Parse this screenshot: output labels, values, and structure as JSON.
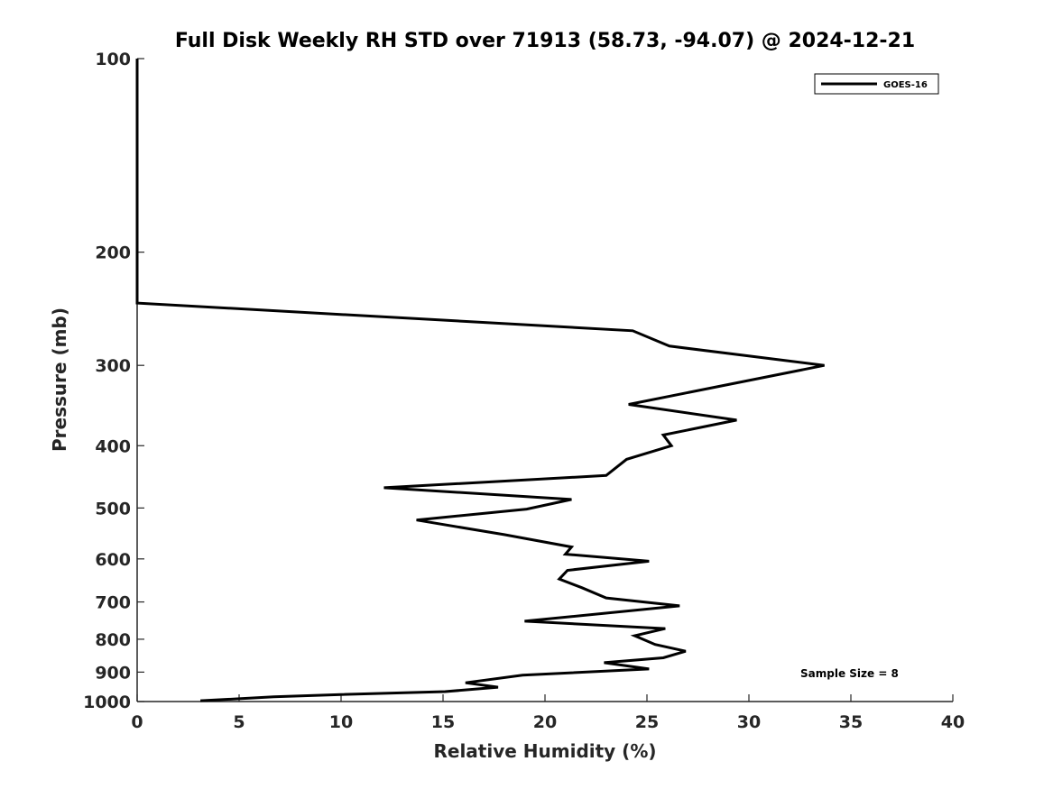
{
  "chart_data": {
    "type": "line",
    "title": "Full Disk Weekly RH STD over 71913 (58.73, -94.07) @ 2024-12-21",
    "xlabel": "Relative Humidity (%)",
    "ylabel": "Pressure (mb)",
    "xlim": [
      0,
      40
    ],
    "ylim": [
      100,
      1000
    ],
    "yscale": "log",
    "y_reversed": true,
    "grid": false,
    "legend_position": "top-right",
    "x_ticks": [
      "0",
      "5",
      "10",
      "15",
      "20",
      "25",
      "30",
      "35",
      "40"
    ],
    "y_ticks": [
      "100",
      "200",
      "300",
      "400",
      "500",
      "600",
      "700",
      "800",
      "900",
      "1000"
    ],
    "series": [
      {
        "name": "GOES-16",
        "color": "#000000",
        "points": [
          [
            0,
            100
          ],
          [
            0,
            150
          ],
          [
            0,
            200
          ],
          [
            0,
            240
          ],
          [
            24.3,
            265
          ],
          [
            26.1,
            280
          ],
          [
            33.7,
            300
          ],
          [
            24.1,
            345
          ],
          [
            29.4,
            365
          ],
          [
            25.8,
            385
          ],
          [
            26.2,
            400
          ],
          [
            24.0,
            420
          ],
          [
            23.0,
            445
          ],
          [
            12.1,
            465
          ],
          [
            21.3,
            485
          ],
          [
            19.1,
            502
          ],
          [
            13.7,
            522
          ],
          [
            18.0,
            550
          ],
          [
            21.3,
            575
          ],
          [
            21.0,
            590
          ],
          [
            25.1,
            605
          ],
          [
            21.1,
            625
          ],
          [
            20.7,
            645
          ],
          [
            21.8,
            665
          ],
          [
            23.0,
            690
          ],
          [
            26.6,
            710
          ],
          [
            19.0,
            750
          ],
          [
            25.9,
            770
          ],
          [
            24.4,
            790
          ],
          [
            25.4,
            815
          ],
          [
            26.9,
            835
          ],
          [
            25.8,
            855
          ],
          [
            22.9,
            870
          ],
          [
            25.1,
            890
          ],
          [
            18.9,
            910
          ],
          [
            16.1,
            935
          ],
          [
            17.7,
            950
          ],
          [
            15.1,
            965
          ],
          [
            10.0,
            975
          ],
          [
            6.7,
            983
          ],
          [
            5.0,
            990
          ],
          [
            3.1,
            997
          ]
        ]
      }
    ],
    "annotation": "Sample Size = 8"
  }
}
